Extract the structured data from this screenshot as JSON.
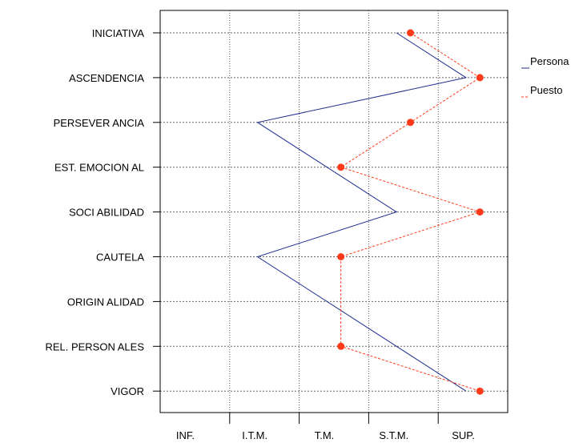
{
  "chart_data": {
    "type": "line",
    "title": "",
    "xlabel": "",
    "ylabel": "",
    "categories": [
      "INICIATIVA",
      "ASCENDENCIA",
      "PERSEVER ANCIA",
      "EST. EMOCION AL",
      "SOCI ABILIDAD",
      "CAUTELA",
      "ORIGIN ALIDAD",
      "REL. PERSON ALES",
      "VIGOR"
    ],
    "x_levels": [
      "INF.",
      "I.T.M.",
      "T.M.",
      "S.T.M.",
      "SUP."
    ],
    "xlim": [
      0,
      5
    ],
    "grid": true,
    "legend_position": "right",
    "series": [
      {
        "name": "Persona",
        "color": "#1f2f8f",
        "markers": false,
        "points": [
          {
            "category": "INICIATIVA",
            "x": 3.4
          },
          {
            "category": "ASCENDENCIA",
            "x": 4.4
          },
          {
            "category": "PERSEVER ANCIA",
            "x": 1.4
          },
          {
            "category": "SOCI ABILIDAD",
            "x": 3.4
          },
          {
            "category": "CAUTELA",
            "x": 1.4
          },
          {
            "category": "VIGOR",
            "x": 4.4
          }
        ]
      },
      {
        "name": "Puesto",
        "color": "#ff3a1a",
        "markers": true,
        "points": [
          {
            "category": "INICIATIVA",
            "x": 3.6
          },
          {
            "category": "ASCENDENCIA",
            "x": 4.6
          },
          {
            "category": "PERSEVER ANCIA",
            "x": 3.6
          },
          {
            "category": "EST. EMOCION AL",
            "x": 2.6
          },
          {
            "category": "SOCI ABILIDAD",
            "x": 4.6
          },
          {
            "category": "CAUTELA",
            "x": 2.6
          },
          {
            "category": "REL. PERSON ALES",
            "x": 2.6
          },
          {
            "category": "VIGOR",
            "x": 4.6
          }
        ]
      }
    ]
  }
}
